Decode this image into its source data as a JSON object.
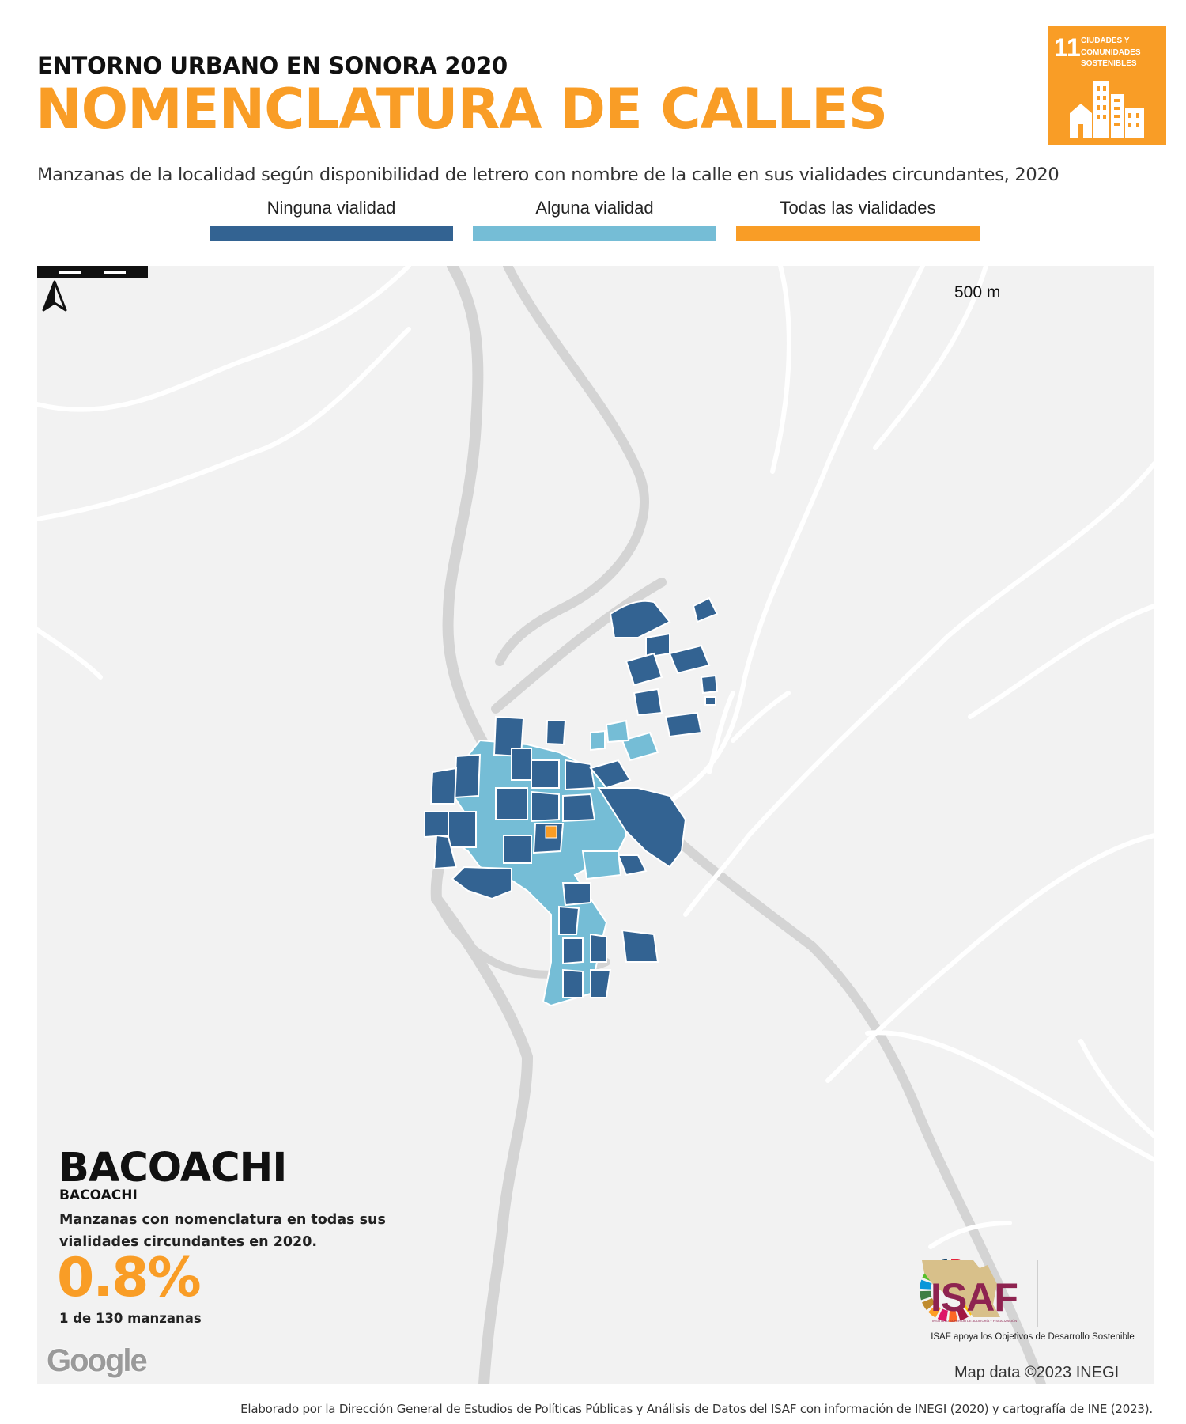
{
  "header": {
    "super_title": "ENTORNO URBANO EN SONORA 2020",
    "title": "NOMENCLATURA DE CALLES",
    "subtitle": "Manzanas de la localidad según disponibilidad de letrero con nombre de la calle en sus vialidades circundantes, 2020"
  },
  "sdg_badge": {
    "number": "11",
    "label": "CIUDADES Y COMUNIDADES SOSTENIBLES",
    "color": "#f99d26",
    "icon": "city-buildings-icon"
  },
  "legend": [
    {
      "label": "Ninguna vialidad",
      "color": "#336392"
    },
    {
      "label": "Alguna vialidad",
      "color": "#75bdd6"
    },
    {
      "label": "Todas las vialidades",
      "color": "#f99d26"
    }
  ],
  "map": {
    "scale_label": "500 m",
    "north_label": "N",
    "attribution": "Map data ©2023 INEGI",
    "provider_logo": "Google",
    "background_color": "#f2f2f2",
    "road_color": "#ffffff",
    "river_color": "#d4d4d4"
  },
  "locality": {
    "name": "BACOACHI",
    "municipality": "BACOACHI",
    "description": "Manzanas con nomenclatura en todas sus vialidades circundantes en 2020.",
    "percentage": "0.8%",
    "count_text": "1 de 130 manzanas"
  },
  "isaf": {
    "logo_text": "ISAF",
    "logo_subtext": "INSTITUTO SUPERIOR DE AUDITORÍA Y FISCALIZACIÓN",
    "caption": "ISAF apoya los Objetivos de Desarrollo Sostenible"
  },
  "footer": {
    "credit": "Elaborado por la Dirección General de Estudios de Políticas Públicas y Análisis de Datos del ISAF con información de INEGI (2020) y cartografía de INE (2023)."
  }
}
